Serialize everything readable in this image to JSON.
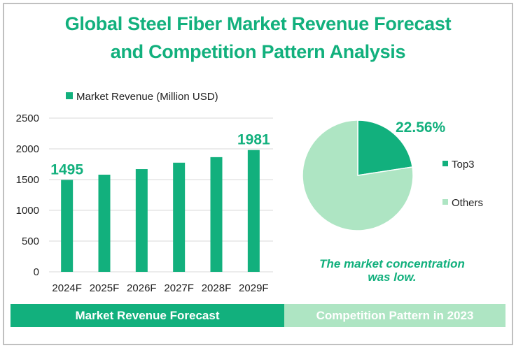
{
  "title": {
    "line1": "Global Steel Fiber Market Revenue Forecast",
    "line2": "and Competition Pattern Analysis"
  },
  "colors": {
    "primary": "#12b07d",
    "secondary": "#aee5c3",
    "grid": "#d9d9d9"
  },
  "chart_data": [
    {
      "type": "bar",
      "title": "Market Revenue Forecast",
      "legend": [
        "Market Revenue (Million USD)"
      ],
      "legend_position": "top",
      "categories": [
        "2024F",
        "2025F",
        "2026F",
        "2027F",
        "2028F",
        "2029F"
      ],
      "series": [
        {
          "name": "Market Revenue (Million USD)",
          "values": [
            1495,
            1580,
            1670,
            1775,
            1865,
            1981
          ]
        }
      ],
      "data_labels": [
        {
          "category": "2024F",
          "text": "1495"
        },
        {
          "category": "2029F",
          "text": "1981"
        }
      ],
      "yticks": [
        "0",
        "500",
        "1000",
        "1500",
        "2000",
        "2500"
      ],
      "ylim": [
        0,
        2500
      ],
      "grid": true,
      "xlabel": "",
      "ylabel": ""
    },
    {
      "type": "pie",
      "title": "Competition Pattern in 2023",
      "labels": [
        "Top3",
        "Others"
      ],
      "values": [
        22.56,
        77.44
      ],
      "data_labels": [
        {
          "label": "Top3",
          "text": "22.56%"
        }
      ],
      "legend_position": "right"
    }
  ],
  "note": {
    "line1": "The market concentration",
    "line2": "was low."
  },
  "footer": {
    "left": "Market Revenue Forecast",
    "right": "Competition Pattern in 2023"
  }
}
